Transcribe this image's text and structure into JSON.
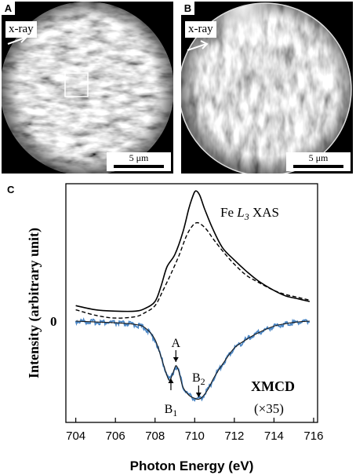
{
  "panels": {
    "a": {
      "letter": "A",
      "xray_label": "x-ray",
      "scalebar_label": "5 μm"
    },
    "b": {
      "letter": "B",
      "xray_label": "x-ray",
      "scalebar_label": "5 μm"
    },
    "c": {
      "letter": "C"
    }
  },
  "chart_data": {
    "type": "line",
    "xlabel": "Photon Energy (eV)",
    "ylabel": "Intensity (arbitrary unit)",
    "xlim": [
      703.5,
      716.2
    ],
    "xticks": [
      704,
      706,
      708,
      710,
      712,
      714,
      716
    ],
    "ytick_zero_label": "0",
    "xas_label_prefix": "Fe ",
    "xas_label_L": "L",
    "xas_label_sub": "3",
    "xas_label_suffix": " XAS",
    "xmcd_label": "XMCD",
    "xmcd_scale_label": "(×35)",
    "annotations": [
      {
        "text": "A",
        "x": 709.05
      },
      {
        "text": "B",
        "sub": "1",
        "x": 708.8
      },
      {
        "text": "B",
        "sub": "2",
        "x": 710.2
      }
    ],
    "series": [
      {
        "name": "",
        "style": "solid",
        "color": "#000000",
        "x": [
          704,
          705,
          706,
          707,
          707.5,
          708,
          708.3,
          708.6,
          709,
          709.4,
          709.7,
          709.9,
          710.05,
          710.25,
          710.5,
          710.9,
          711.4,
          712,
          712.6,
          713.2,
          714,
          714.6,
          715.2,
          715.8
        ],
        "y": [
          0.22,
          0.19,
          0.18,
          0.18,
          0.2,
          0.25,
          0.36,
          0.5,
          0.59,
          0.75,
          0.92,
          1.01,
          1.05,
          1.02,
          0.92,
          0.78,
          0.64,
          0.55,
          0.47,
          0.4,
          0.33,
          0.29,
          0.27,
          0.25
        ]
      },
      {
        "name": "",
        "style": "dashed",
        "color": "#000000",
        "x": [
          704,
          705,
          706,
          707,
          707.5,
          708,
          708.4,
          708.8,
          709.2,
          709.6,
          709.9,
          710.1,
          710.3,
          710.6,
          711,
          711.5,
          712,
          712.6,
          713.2,
          714,
          714.6,
          715.2,
          715.8
        ],
        "y": [
          0.19,
          0.15,
          0.13,
          0.14,
          0.17,
          0.22,
          0.33,
          0.45,
          0.58,
          0.73,
          0.8,
          0.82,
          0.81,
          0.77,
          0.69,
          0.6,
          0.52,
          0.44,
          0.39,
          0.33,
          0.3,
          0.28,
          0.26
        ]
      },
      {
        "name": "",
        "style": "noisy",
        "color": "#4a86c5",
        "x": [
          704,
          705,
          706,
          707,
          707.5,
          708,
          708.4,
          708.7,
          708.9,
          709.05,
          709.2,
          709.4,
          709.7,
          710,
          710.2,
          710.4,
          710.7,
          711,
          711.5,
          712,
          712.6,
          713.2,
          714,
          714.6,
          715.2,
          715.8
        ],
        "y": [
          0.0,
          -0.01,
          -0.02,
          -0.04,
          -0.08,
          -0.22,
          -0.5,
          -0.7,
          -0.62,
          -0.53,
          -0.6,
          -0.78,
          -0.88,
          -0.92,
          -0.93,
          -0.9,
          -0.8,
          -0.66,
          -0.48,
          -0.32,
          -0.22,
          -0.14,
          -0.06,
          -0.03,
          -0.01,
          0.0
        ]
      },
      {
        "name": "",
        "style": "fit",
        "color": "#1a1a1a",
        "x": [
          704,
          705,
          706,
          707,
          707.5,
          708,
          708.4,
          708.7,
          708.9,
          709.05,
          709.2,
          709.4,
          709.7,
          710,
          710.2,
          710.4,
          710.7,
          711,
          711.5,
          712,
          712.6,
          713.2,
          714,
          714.6,
          715.2,
          715.8
        ],
        "y": [
          0.0,
          -0.01,
          -0.02,
          -0.04,
          -0.08,
          -0.22,
          -0.5,
          -0.7,
          -0.62,
          -0.53,
          -0.6,
          -0.78,
          -0.88,
          -0.92,
          -0.93,
          -0.9,
          -0.8,
          -0.66,
          -0.48,
          -0.32,
          -0.22,
          -0.14,
          -0.06,
          -0.03,
          -0.01,
          0.0
        ]
      }
    ]
  }
}
